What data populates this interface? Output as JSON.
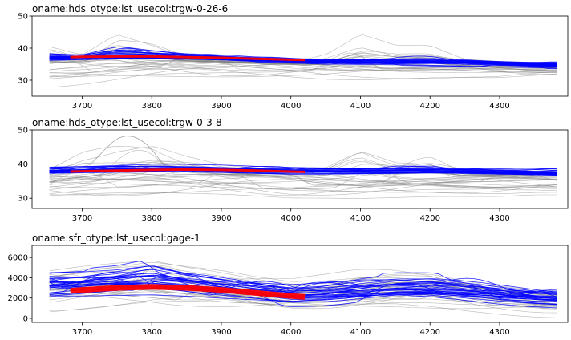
{
  "chart_data": [
    {
      "type": "line",
      "title": "oname:hds_otype:lst_usecol:trgw-0-26-6",
      "xlabel": "",
      "ylabel": "",
      "xlim": [
        3628,
        4398
      ],
      "ylim": [
        25,
        50
      ],
      "xticks": [
        3700,
        3800,
        3900,
        4000,
        4100,
        4200,
        4300,
        4400
      ],
      "yticks": [
        30,
        40,
        50
      ],
      "grid": false,
      "series": [
        {
          "role": "prior ensemble",
          "color": "#808080",
          "members": 30,
          "envelope": {
            "x": [
              3653,
              3700,
              3750,
              3800,
              3850,
              3900,
              3950,
              4000,
              4050,
              4100,
              4150,
              4200,
              4250,
              4300,
              4350,
              4383
            ],
            "lower": [
              26.5,
              27.0,
              27.5,
              28.0,
              28.5,
              28.5,
              28.5,
              28.5,
              28.5,
              29.0,
              29.5,
              30.0,
              30.0,
              29.5,
              30.0,
              30.5
            ],
            "center": [
              35.0,
              35.3,
              35.6,
              35.8,
              35.8,
              35.6,
              35.3,
              35.0,
              34.8,
              34.8,
              34.8,
              34.7,
              34.5,
              34.3,
              34.0,
              33.8
            ],
            "upper": [
              43.0,
              39.0,
              48.5,
              44.0,
              38.0,
              37.0,
              36.5,
              36.0,
              39.0,
              46.5,
              42.0,
              42.0,
              37.0,
              36.5,
              36.0,
              35.5
            ]
          }
        },
        {
          "role": "posterior ensemble",
          "color": "#0000ff",
          "members": 30,
          "envelope": {
            "x": [
              3653,
              3700,
              3750,
              3800,
              3850,
              3900,
              3950,
              4000,
              4050,
              4100,
              4150,
              4200,
              4250,
              4300,
              4350,
              4383
            ],
            "lower": [
              35.5,
              35.8,
              36.0,
              36.0,
              35.8,
              35.5,
              35.0,
              34.8,
              34.5,
              34.3,
              34.2,
              34.0,
              33.8,
              33.5,
              33.2,
              33.0
            ],
            "center": [
              37.0,
              37.2,
              37.3,
              37.3,
              37.2,
              37.0,
              36.6,
              36.3,
              36.0,
              35.8,
              35.8,
              35.7,
              35.5,
              35.2,
              34.9,
              34.7
            ],
            "upper": [
              39.5,
              38.5,
              42.5,
              41.0,
              39.5,
              38.5,
              37.5,
              37.0,
              37.0,
              37.0,
              37.5,
              37.5,
              37.0,
              36.5,
              36.3,
              36.0
            ]
          }
        },
        {
          "role": "observed",
          "color": "#ff0000",
          "x": [
            3683,
            3700,
            3750,
            3800,
            3850,
            3900,
            3950,
            4000,
            4020
          ],
          "y": [
            37.2,
            37.3,
            37.4,
            37.4,
            37.2,
            37.0,
            36.7,
            36.4,
            36.3
          ]
        }
      ]
    },
    {
      "type": "line",
      "title": "oname:hds_otype:lst_usecol:trgw-0-3-8",
      "xlabel": "",
      "ylabel": "",
      "xlim": [
        3628,
        4398
      ],
      "ylim": [
        27,
        50
      ],
      "xticks": [
        3700,
        3800,
        3900,
        4000,
        4100,
        4200,
        4300,
        4400
      ],
      "yticks": [
        30,
        40,
        50
      ],
      "grid": false,
      "series": [
        {
          "role": "prior ensemble",
          "color": "#808080",
          "members": 30,
          "envelope": {
            "x": [
              3653,
              3700,
              3750,
              3800,
              3850,
              3900,
              3950,
              4000,
              4050,
              4100,
              4150,
              4200,
              4250,
              4300,
              4350,
              4383
            ],
            "lower": [
              28.5,
              29.0,
              29.3,
              29.5,
              29.5,
              29.5,
              29.3,
              29.0,
              29.3,
              29.5,
              30.0,
              30.5,
              30.5,
              30.5,
              31.0,
              31.0
            ],
            "center": [
              36.2,
              36.5,
              36.8,
              37.0,
              37.0,
              36.8,
              36.5,
              36.2,
              36.0,
              36.0,
              36.0,
              36.0,
              35.8,
              35.7,
              35.5,
              35.4
            ],
            "upper": [
              40.0,
              46.5,
              49.0,
              49.5,
              44.0,
              40.5,
              39.5,
              39.5,
              40.0,
              47.5,
              42.5,
              42.5,
              39.5,
              39.0,
              38.5,
              38.5
            ]
          }
        },
        {
          "role": "posterior ensemble",
          "color": "#0000ff",
          "members": 30,
          "envelope": {
            "x": [
              3653,
              3700,
              3750,
              3800,
              3850,
              3900,
              3950,
              4000,
              4050,
              4100,
              4150,
              4200,
              4250,
              4300,
              4350,
              4383
            ],
            "lower": [
              36.8,
              37.0,
              37.2,
              37.3,
              37.3,
              37.2,
              37.0,
              36.8,
              36.8,
              36.8,
              36.8,
              36.8,
              36.7,
              36.5,
              36.3,
              36.2
            ],
            "center": [
              38.0,
              38.2,
              38.4,
              38.5,
              38.5,
              38.4,
              38.2,
              38.0,
              38.0,
              38.0,
              38.0,
              38.0,
              37.9,
              37.7,
              37.5,
              37.4
            ],
            "upper": [
              39.5,
              39.8,
              40.0,
              40.2,
              40.0,
              39.8,
              39.5,
              39.3,
              39.3,
              39.3,
              39.4,
              39.4,
              39.2,
              39.0,
              38.8,
              38.7
            ]
          }
        },
        {
          "role": "observed",
          "color": "#ff0000",
          "x": [
            3683,
            3700,
            3750,
            3800,
            3850,
            3900,
            3950,
            4000,
            4020
          ],
          "y": [
            37.8,
            37.9,
            38.1,
            38.3,
            38.4,
            38.3,
            38.1,
            37.8,
            37.7
          ]
        }
      ]
    },
    {
      "type": "line",
      "title": "oname:sfr_otype:lst_usecol:gage-1",
      "xlabel": "",
      "ylabel": "",
      "xlim": [
        3628,
        4398
      ],
      "ylim": [
        -400,
        7200
      ],
      "xticks": [
        3700,
        3800,
        3900,
        4000,
        4100,
        4200,
        4300,
        4400
      ],
      "yticks": [
        0,
        2000,
        4000,
        6000
      ],
      "grid": false,
      "series": [
        {
          "role": "prior ensemble",
          "color": "#808080",
          "members": 30,
          "envelope": {
            "x": [
              3653,
              3700,
              3750,
              3800,
              3850,
              3900,
              3950,
              4000,
              4050,
              4100,
              4150,
              4200,
              4250,
              4300,
              4350,
              4383
            ],
            "lower": [
              300,
              400,
              500,
              600,
              500,
              400,
              300,
              200,
              300,
              500,
              700,
              600,
              400,
              200,
              50,
              0
            ],
            "center": [
              2800,
              3000,
              3200,
              3300,
              3100,
              2800,
              2500,
              2300,
              2400,
              2700,
              2900,
              2900,
              2600,
              2300,
              2000,
              1900
            ],
            "upper": [
              5800,
              6200,
              6500,
              6800,
              6000,
              5500,
              4800,
              4300,
              4600,
              5200,
              5500,
              5500,
              4800,
              4300,
              3800,
              3600
            ]
          }
        },
        {
          "role": "posterior ensemble",
          "color": "#0000ff",
          "members": 30,
          "envelope": {
            "x": [
              3653,
              3700,
              3750,
              3800,
              3850,
              3900,
              3950,
              4000,
              4050,
              4100,
              4150,
              4200,
              4250,
              4300,
              4350,
              4383
            ],
            "lower": [
              1400,
              1500,
              1600,
              1700,
              1600,
              1400,
              1200,
              1000,
              1100,
              1300,
              1500,
              1400,
              1200,
              900,
              700,
              600
            ],
            "center": [
              3100,
              3200,
              3400,
              3500,
              3300,
              3000,
              2700,
              2400,
              2500,
              2800,
              3000,
              3000,
              2700,
              2400,
              2100,
              2000
            ],
            "upper": [
              4800,
              4900,
              5200,
              5900,
              5000,
              4600,
              4200,
              3800,
              3900,
              4300,
              4500,
              4500,
              4100,
              3700,
              3400,
              3200
            ]
          }
        },
        {
          "role": "observed",
          "color": "#ff0000",
          "x": [
            3683,
            3700,
            3750,
            3800,
            3850,
            3900,
            3950,
            4000,
            4020
          ],
          "y": [
            2700,
            2800,
            3000,
            3100,
            3000,
            2800,
            2500,
            2200,
            2100
          ]
        }
      ]
    }
  ]
}
